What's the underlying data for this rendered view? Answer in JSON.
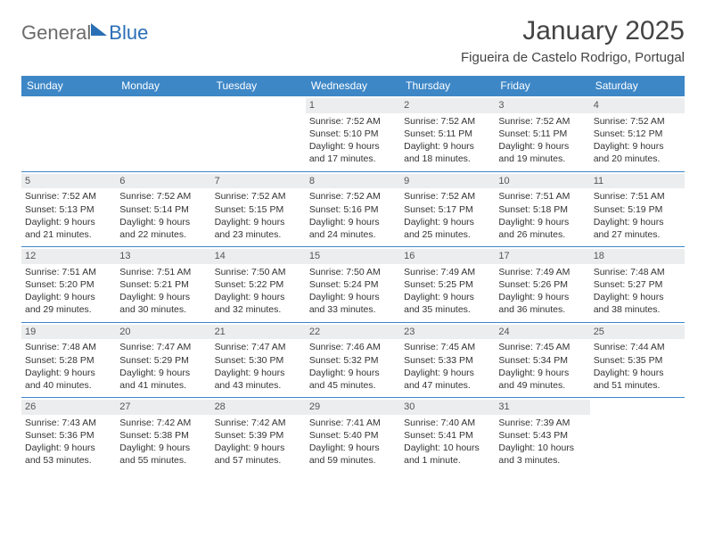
{
  "logo": {
    "part1": "General",
    "part2": "Blue"
  },
  "header": {
    "month_title": "January 2025",
    "location": "Figueira de Castelo Rodrigo, Portugal"
  },
  "colors": {
    "header_bg": "#3d87c7",
    "header_fg": "#ffffff",
    "daynum_bg": "#ecedee",
    "border": "#3d87c7",
    "logo_gray": "#6b6b6b",
    "logo_blue": "#2a6fb5"
  },
  "weekdays": [
    "Sunday",
    "Monday",
    "Tuesday",
    "Wednesday",
    "Thursday",
    "Friday",
    "Saturday"
  ],
  "weeks": [
    [
      null,
      null,
      null,
      {
        "n": "1",
        "sr": "7:52 AM",
        "ss": "5:10 PM",
        "dl": "9 hours and 17 minutes."
      },
      {
        "n": "2",
        "sr": "7:52 AM",
        "ss": "5:11 PM",
        "dl": "9 hours and 18 minutes."
      },
      {
        "n": "3",
        "sr": "7:52 AM",
        "ss": "5:11 PM",
        "dl": "9 hours and 19 minutes."
      },
      {
        "n": "4",
        "sr": "7:52 AM",
        "ss": "5:12 PM",
        "dl": "9 hours and 20 minutes."
      }
    ],
    [
      {
        "n": "5",
        "sr": "7:52 AM",
        "ss": "5:13 PM",
        "dl": "9 hours and 21 minutes."
      },
      {
        "n": "6",
        "sr": "7:52 AM",
        "ss": "5:14 PM",
        "dl": "9 hours and 22 minutes."
      },
      {
        "n": "7",
        "sr": "7:52 AM",
        "ss": "5:15 PM",
        "dl": "9 hours and 23 minutes."
      },
      {
        "n": "8",
        "sr": "7:52 AM",
        "ss": "5:16 PM",
        "dl": "9 hours and 24 minutes."
      },
      {
        "n": "9",
        "sr": "7:52 AM",
        "ss": "5:17 PM",
        "dl": "9 hours and 25 minutes."
      },
      {
        "n": "10",
        "sr": "7:51 AM",
        "ss": "5:18 PM",
        "dl": "9 hours and 26 minutes."
      },
      {
        "n": "11",
        "sr": "7:51 AM",
        "ss": "5:19 PM",
        "dl": "9 hours and 27 minutes."
      }
    ],
    [
      {
        "n": "12",
        "sr": "7:51 AM",
        "ss": "5:20 PM",
        "dl": "9 hours and 29 minutes."
      },
      {
        "n": "13",
        "sr": "7:51 AM",
        "ss": "5:21 PM",
        "dl": "9 hours and 30 minutes."
      },
      {
        "n": "14",
        "sr": "7:50 AM",
        "ss": "5:22 PM",
        "dl": "9 hours and 32 minutes."
      },
      {
        "n": "15",
        "sr": "7:50 AM",
        "ss": "5:24 PM",
        "dl": "9 hours and 33 minutes."
      },
      {
        "n": "16",
        "sr": "7:49 AM",
        "ss": "5:25 PM",
        "dl": "9 hours and 35 minutes."
      },
      {
        "n": "17",
        "sr": "7:49 AM",
        "ss": "5:26 PM",
        "dl": "9 hours and 36 minutes."
      },
      {
        "n": "18",
        "sr": "7:48 AM",
        "ss": "5:27 PM",
        "dl": "9 hours and 38 minutes."
      }
    ],
    [
      {
        "n": "19",
        "sr": "7:48 AM",
        "ss": "5:28 PM",
        "dl": "9 hours and 40 minutes."
      },
      {
        "n": "20",
        "sr": "7:47 AM",
        "ss": "5:29 PM",
        "dl": "9 hours and 41 minutes."
      },
      {
        "n": "21",
        "sr": "7:47 AM",
        "ss": "5:30 PM",
        "dl": "9 hours and 43 minutes."
      },
      {
        "n": "22",
        "sr": "7:46 AM",
        "ss": "5:32 PM",
        "dl": "9 hours and 45 minutes."
      },
      {
        "n": "23",
        "sr": "7:45 AM",
        "ss": "5:33 PM",
        "dl": "9 hours and 47 minutes."
      },
      {
        "n": "24",
        "sr": "7:45 AM",
        "ss": "5:34 PM",
        "dl": "9 hours and 49 minutes."
      },
      {
        "n": "25",
        "sr": "7:44 AM",
        "ss": "5:35 PM",
        "dl": "9 hours and 51 minutes."
      }
    ],
    [
      {
        "n": "26",
        "sr": "7:43 AM",
        "ss": "5:36 PM",
        "dl": "9 hours and 53 minutes."
      },
      {
        "n": "27",
        "sr": "7:42 AM",
        "ss": "5:38 PM",
        "dl": "9 hours and 55 minutes."
      },
      {
        "n": "28",
        "sr": "7:42 AM",
        "ss": "5:39 PM",
        "dl": "9 hours and 57 minutes."
      },
      {
        "n": "29",
        "sr": "7:41 AM",
        "ss": "5:40 PM",
        "dl": "9 hours and 59 minutes."
      },
      {
        "n": "30",
        "sr": "7:40 AM",
        "ss": "5:41 PM",
        "dl": "10 hours and 1 minute."
      },
      {
        "n": "31",
        "sr": "7:39 AM",
        "ss": "5:43 PM",
        "dl": "10 hours and 3 minutes."
      },
      null
    ]
  ],
  "labels": {
    "sunrise": "Sunrise:",
    "sunset": "Sunset:",
    "daylight": "Daylight:"
  }
}
